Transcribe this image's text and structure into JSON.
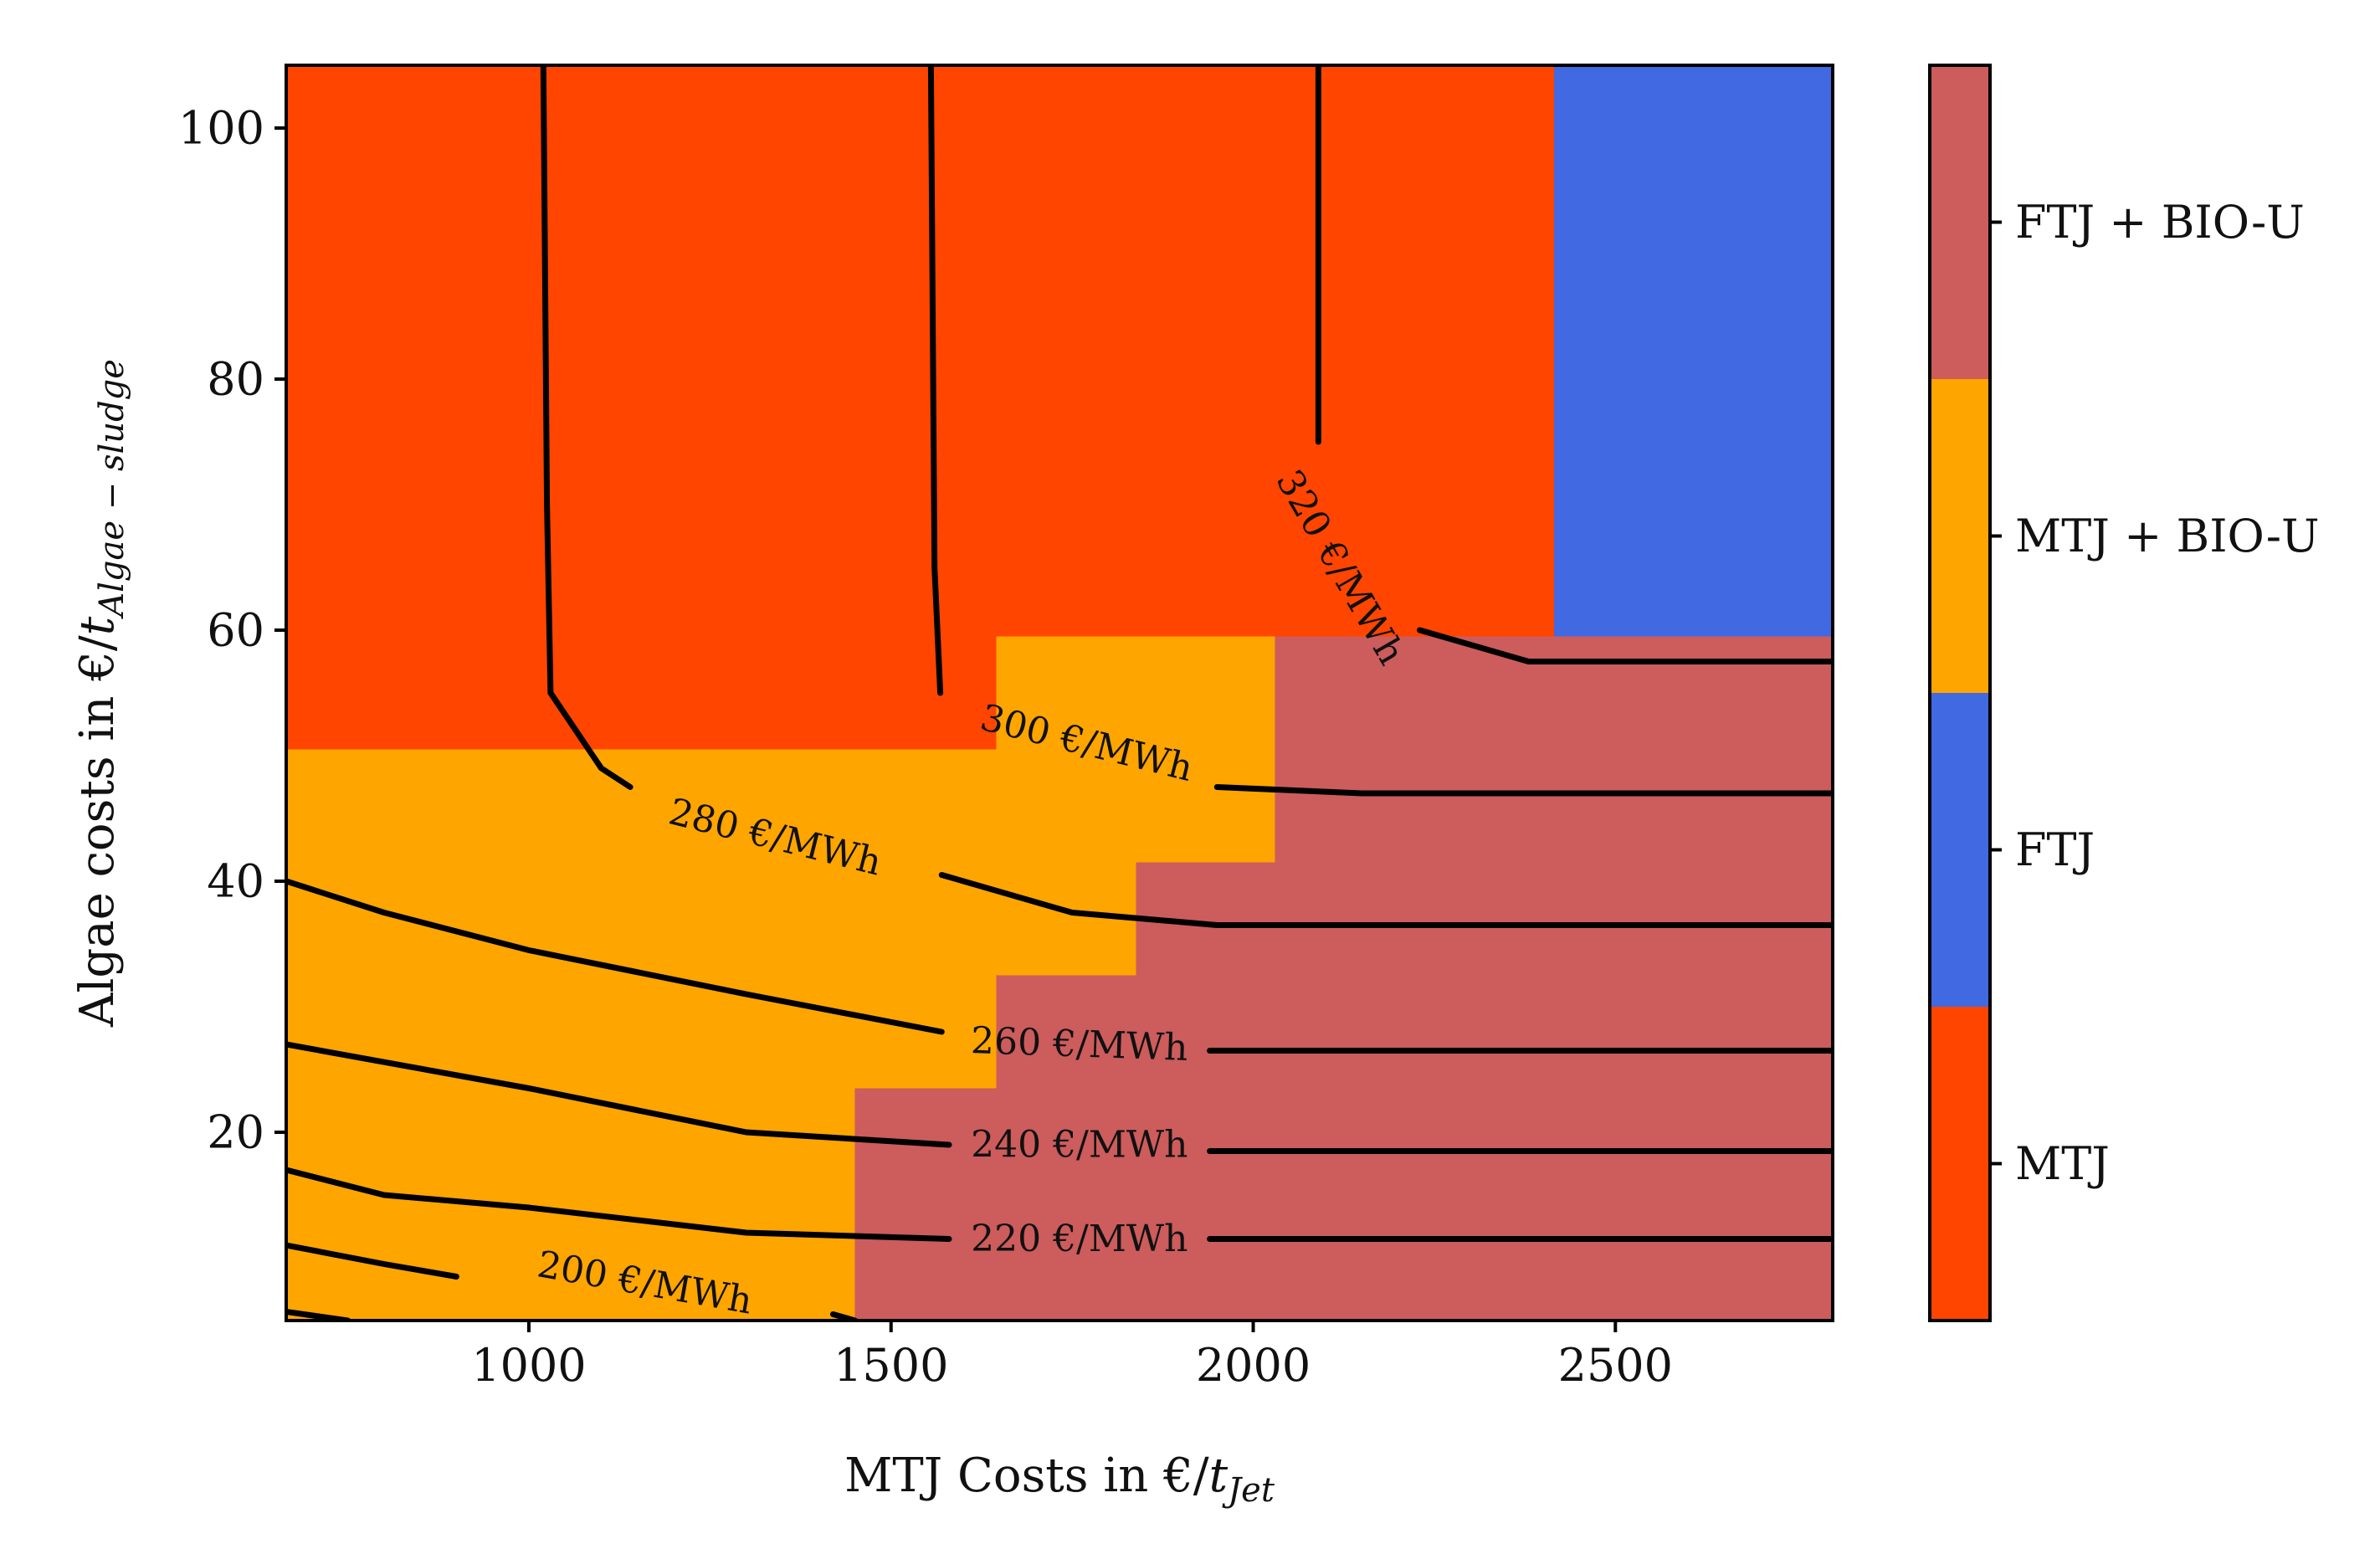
{
  "chart_data": {
    "type": "heatmap",
    "title": "",
    "xlabel": {
      "prefix": "MTJ Costs in €/",
      "var": "t",
      "sub": "Jet"
    },
    "ylabel": {
      "prefix": "Algae costs in €/",
      "var": "t",
      "sub": "Algae − sludge"
    },
    "xlim": [
      665,
      2800
    ],
    "ylim": [
      5,
      105
    ],
    "xticks": [
      1000,
      1500,
      2000,
      2500
    ],
    "yticks": [
      20,
      40,
      60,
      80,
      100
    ],
    "grid": false,
    "categories": [
      {
        "name": "MTJ",
        "color": "#ff4500"
      },
      {
        "name": "FTJ",
        "color": "#4169e1"
      },
      {
        "name": "MTJ + BIO-U",
        "color": "#ffa500"
      },
      {
        "name": "FTJ + BIO-U",
        "color": "#cd5c5c"
      }
    ],
    "colorbar_order": [
      "MTJ",
      "FTJ",
      "MTJ + BIO-U",
      "FTJ + BIO-U"
    ],
    "colorbar_position": "right",
    "regions": [
      {
        "category": "MTJ",
        "x": [
          665,
          2800
        ],
        "y": [
          5,
          105
        ]
      },
      {
        "category": "MTJ + BIO-U",
        "x": [
          665,
          1645
        ],
        "y": [
          5,
          50.5
        ]
      },
      {
        "category": "MTJ + BIO-U",
        "x": [
          1645,
          2030
        ],
        "y": [
          5,
          59.5
        ]
      },
      {
        "category": "FTJ",
        "x": [
          2415,
          2800
        ],
        "y": [
          59.5,
          105
        ]
      },
      {
        "category": "FTJ + BIO-U",
        "x": [
          2030,
          2800
        ],
        "y": [
          5,
          59.5
        ]
      },
      {
        "category": "FTJ + BIO-U",
        "x": [
          1838,
          2030
        ],
        "y": [
          5,
          41.5
        ]
      },
      {
        "category": "FTJ + BIO-U",
        "x": [
          1645,
          1838
        ],
        "y": [
          5,
          32.5
        ]
      },
      {
        "category": "FTJ + BIO-U",
        "x": [
          1450,
          1645
        ],
        "y": [
          5,
          23.5
        ]
      }
    ],
    "contours": [
      {
        "label": "320 €/MWh",
        "label_at": [
          2120,
          65
        ],
        "label_angle": 60,
        "x": [
          2090,
          2090,
          null,
          2230,
          2380,
          2800
        ],
        "y": [
          105,
          75,
          null,
          60,
          57.5,
          57.5
        ]
      },
      {
        "label": "300 €/MWh",
        "label_at": [
          1770,
          51
        ],
        "label_angle": 14,
        "x": [
          1555,
          1560,
          1568,
          null,
          1950,
          2150,
          2800
        ],
        "y": [
          105,
          65,
          55,
          null,
          47.5,
          47,
          47
        ]
      },
      {
        "label": "280 €/MWh",
        "label_at": [
          1340,
          43.5
        ],
        "label_angle": 14,
        "x": [
          1020,
          1025,
          1030,
          1100,
          1140,
          null,
          1570,
          1750,
          1950,
          2800
        ],
        "y": [
          105,
          70,
          55,
          49,
          47.5,
          null,
          40.5,
          37.5,
          36.5,
          36.5
        ]
      },
      {
        "label": "260 €/MWh",
        "label_at": [
          1760,
          27
        ],
        "label_angle": 2,
        "x": [
          665,
          800,
          1000,
          1300,
          1570,
          null,
          1940,
          2800
        ],
        "y": [
          40,
          37.5,
          34.5,
          31,
          28,
          null,
          26.5,
          26.5
        ]
      },
      {
        "label": "240 €/MWh",
        "label_at": [
          1760,
          19
        ],
        "label_angle": 0,
        "x": [
          665,
          1000,
          1300,
          1580,
          null,
          1940,
          2800
        ],
        "y": [
          27,
          23.5,
          20,
          19,
          null,
          18.5,
          18.5
        ]
      },
      {
        "label": "220 €/MWh",
        "label_at": [
          1760,
          11.5
        ],
        "label_angle": 0,
        "x": [
          665,
          800,
          1000,
          1300,
          1580,
          null,
          1940,
          2800
        ],
        "y": [
          17,
          15,
          14,
          12,
          11.5,
          null,
          11.5,
          11.5
        ]
      },
      {
        "label": "200 €/MWh",
        "label_at": [
          1160,
          8
        ],
        "label_angle": 10,
        "x": [
          665,
          800,
          900,
          null,
          1420,
          1450
        ],
        "y": [
          11,
          9.5,
          8.5,
          null,
          5.5,
          5
        ]
      },
      {
        "label": "",
        "label_at": null,
        "label_angle": 0,
        "x": [
          665,
          750
        ],
        "y": [
          5.7,
          5
        ]
      }
    ]
  }
}
